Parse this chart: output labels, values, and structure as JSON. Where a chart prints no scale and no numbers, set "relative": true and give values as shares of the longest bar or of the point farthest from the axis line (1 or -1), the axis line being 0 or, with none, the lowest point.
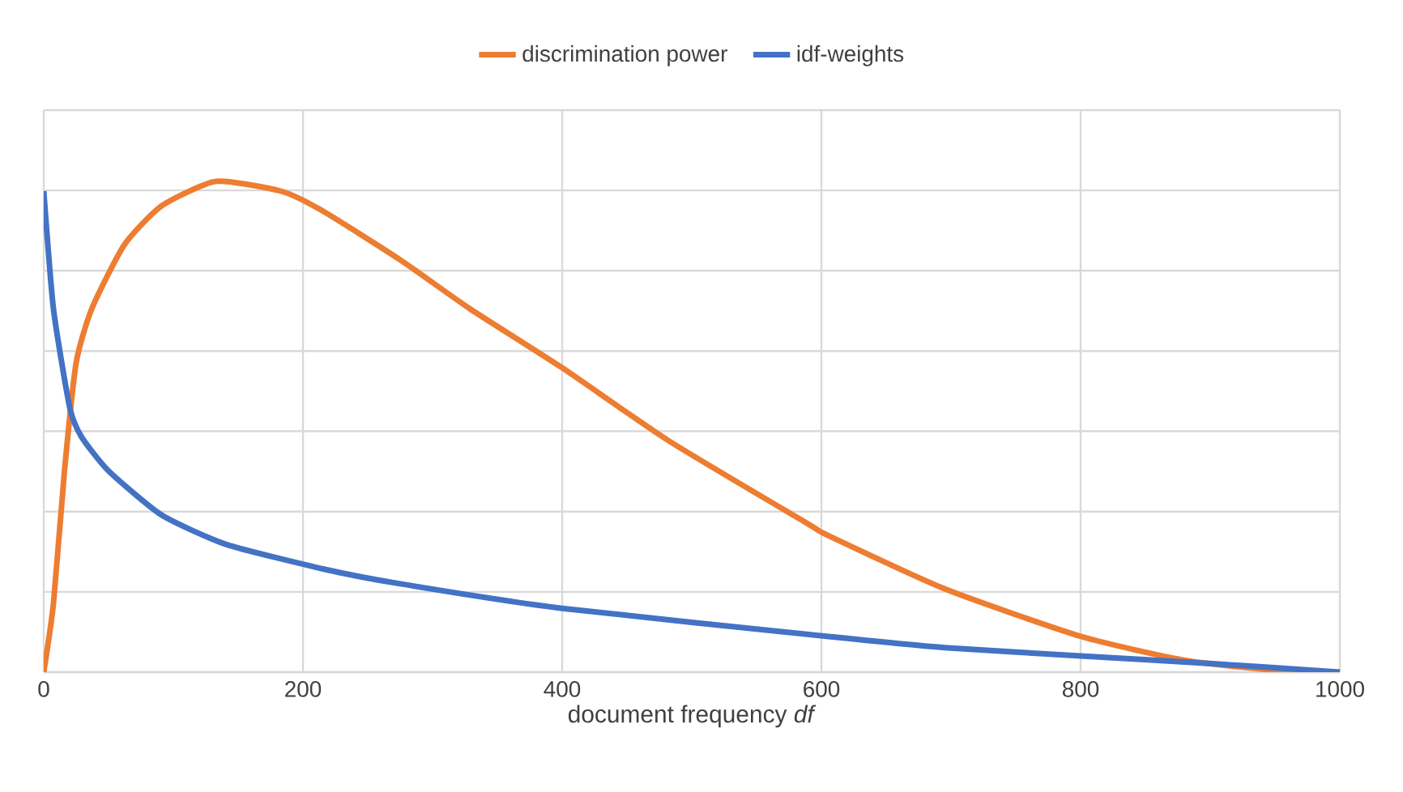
{
  "chart_data": {
    "type": "line",
    "relative": true,
    "xlabel": "document  frequency *df*",
    "xlim": [
      0,
      1000
    ],
    "xticks": [
      0,
      200,
      400,
      600,
      800,
      1000
    ],
    "grid": true,
    "legend": "top",
    "marker": "none",
    "line_style": "solid",
    "series": [
      {
        "name": "discrimination power",
        "color": "#ed7d31",
        "x": [
          0,
          7.5,
          16,
          25,
          37,
          62,
          91,
          133,
          183,
          215,
          275,
          329,
          400,
          483,
          591,
          604,
          695,
          800,
          883,
          966,
          1000
        ],
        "values": [
          0,
          0.14,
          0.41,
          0.63,
          0.74,
          0.87,
          0.95,
          1.0,
          0.98,
          0.94,
          0.84,
          0.74,
          0.62,
          0.47,
          0.3,
          0.28,
          0.17,
          0.073,
          0.023,
          0,
          0
        ]
      },
      {
        "name": "idf-weights",
        "color": "#4472c4",
        "x": [
          0,
          7.5,
          20,
          29,
          50,
          91,
          141,
          216,
          275,
          400,
          604,
          695,
          800,
          904,
          1000
        ],
        "values": [
          0.98,
          0.74,
          0.54,
          0.48,
          0.41,
          0.32,
          0.26,
          0.21,
          0.18,
          0.13,
          0.073,
          0.05,
          0.033,
          0.017,
          0
        ]
      }
    ]
  }
}
